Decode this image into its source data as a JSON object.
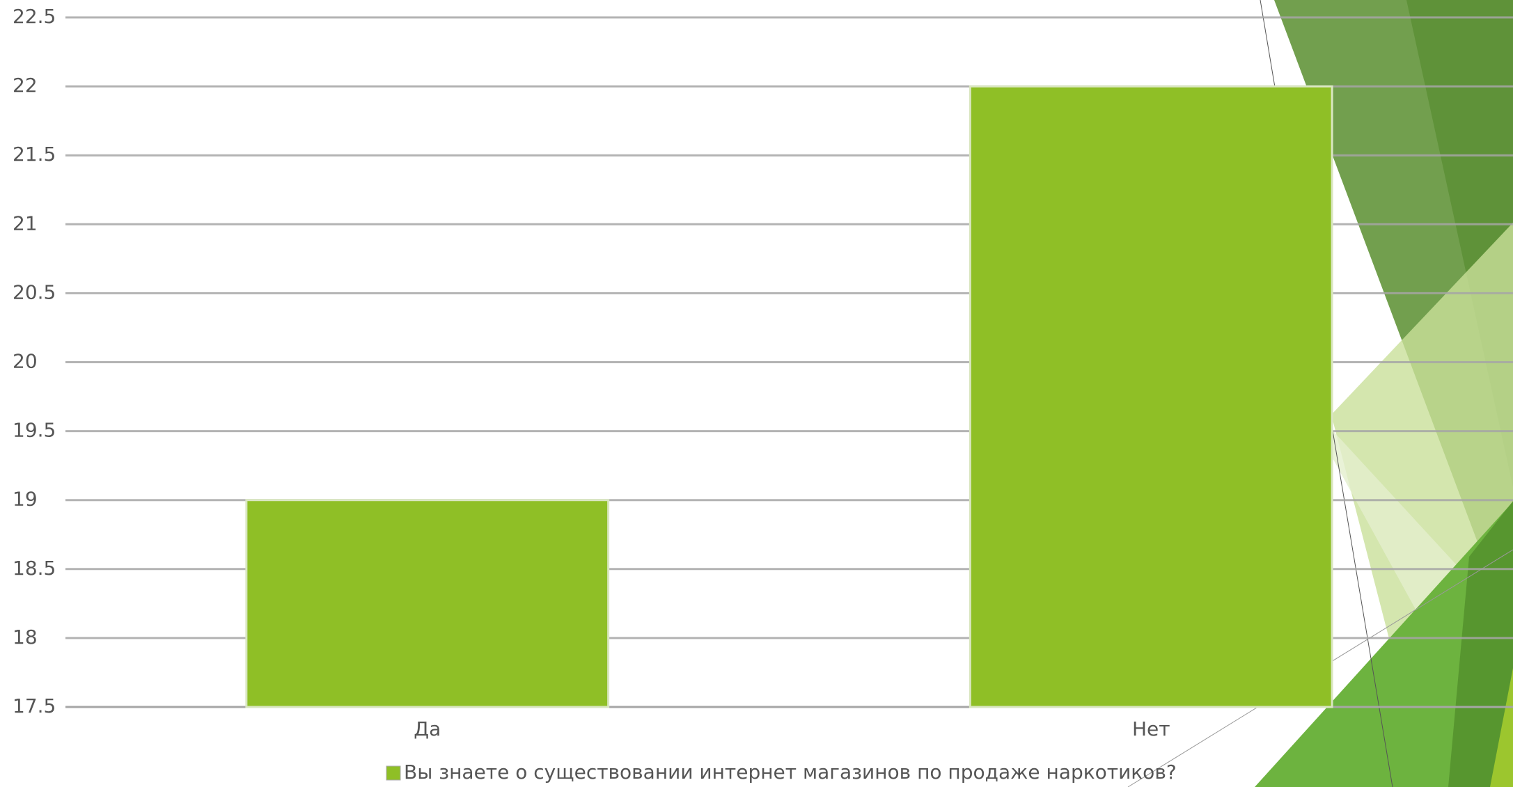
{
  "chart_data": {
    "type": "bar",
    "categories": [
      "Да",
      "Нет"
    ],
    "series": [
      {
        "name": "Вы знаете о существовании интернет магазинов по продаже наркотиков?",
        "color": "#8fbf26",
        "values": [
          19,
          22
        ]
      }
    ],
    "ylim": [
      17.5,
      22.5
    ],
    "yticks": [
      17.5,
      18,
      18.5,
      19,
      19.5,
      20,
      20.5,
      21,
      21.5,
      22,
      22.5
    ],
    "grid": true,
    "legend": "bottom"
  }
}
